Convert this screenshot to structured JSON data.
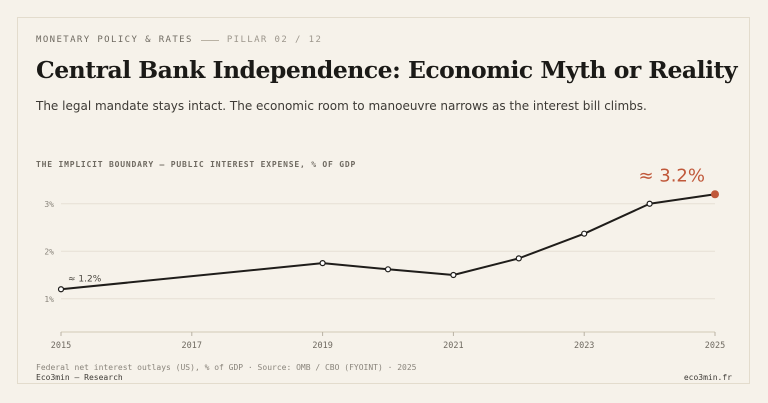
{
  "kicker": {
    "section": "MONETARY POLICY & RATES",
    "pillar": "PILLAR 02 / 12"
  },
  "title": "Central Bank Independence: Economic Myth or Reality",
  "subtitle": "The legal mandate stays intact. The economic room to manoeuvre narrows as the interest bill climbs.",
  "chart_label": "THE IMPLICIT BOUNDARY — PUBLIC INTEREST EXPENSE, % OF GDP",
  "footer": {
    "source": "Federal net interest outlays (US), % of GDP · Source: OMB / CBO (FYOINT) · 2025",
    "brand": "Eco3min — Research",
    "site": "eco3min.fr"
  },
  "colors": {
    "background": "#f6f2ea",
    "line": "#1f1d1a",
    "accent": "#c0583a",
    "grid": "#e6e0d4"
  },
  "chart_data": {
    "type": "line",
    "x": [
      2015,
      2019,
      2020,
      2021,
      2022,
      2023,
      2024,
      2025
    ],
    "series": [
      {
        "values": [
          1.2,
          1.75,
          1.62,
          1.5,
          1.85,
          2.37,
          3.0,
          3.2
        ]
      }
    ],
    "xticks": [
      "2015",
      "2017",
      "2019",
      "2021",
      "2023",
      "2025"
    ],
    "yticks": [
      "1%",
      "2%",
      "3%"
    ],
    "xlim": [
      2015,
      2025
    ],
    "ylim": [
      0.3,
      3.5
    ],
    "grid": true,
    "annotations": {
      "start": "≈ 1.2%",
      "end": "≈ 3.2%"
    }
  }
}
